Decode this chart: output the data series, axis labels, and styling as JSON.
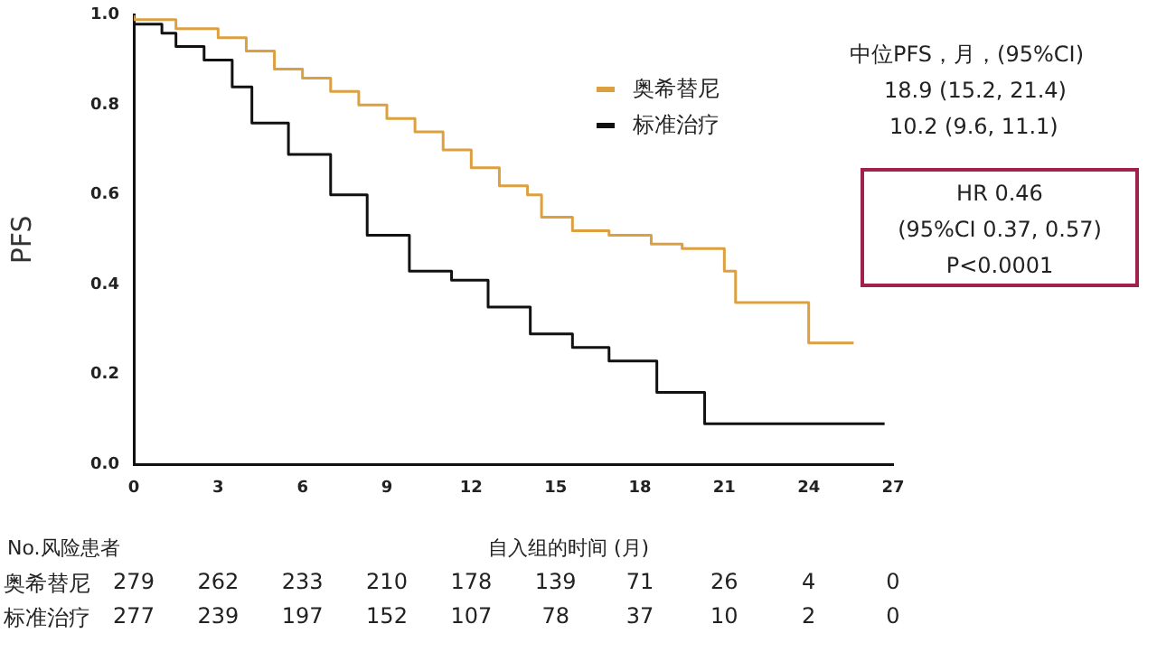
{
  "chart_data": {
    "type": "step",
    "ylabel": "PFS",
    "xlabel": "自入组的时间 (月)",
    "xlim": [
      0,
      27
    ],
    "xticks": [
      0,
      3,
      6,
      9,
      12,
      15,
      18,
      21,
      24,
      27
    ],
    "ylim": [
      0,
      1
    ],
    "yticks": [
      {
        "value": 0,
        "label": "0.0"
      },
      {
        "value": 0.2,
        "label": "0.2"
      },
      {
        "value": 0.4,
        "label": "0.4"
      },
      {
        "value": 0.6,
        "label": "0.6"
      },
      {
        "value": 0.8,
        "label": "0.8"
      },
      {
        "value": 1,
        "label": "1.0"
      }
    ],
    "grid": false,
    "legend": "top right",
    "series": [
      {
        "name": "奥希替尼",
        "color": "#dda040",
        "x": [
          0,
          1.5,
          3,
          4,
          5,
          6,
          7,
          8,
          9,
          10,
          11,
          12,
          13,
          14,
          14.5,
          15.6,
          16.9,
          18.4,
          19.5,
          21,
          21.4,
          24,
          24.9,
          25.6
        ],
        "values": [
          1,
          0.99,
          0.97,
          0.95,
          0.92,
          0.88,
          0.86,
          0.83,
          0.8,
          0.77,
          0.74,
          0.7,
          0.66,
          0.62,
          0.6,
          0.55,
          0.52,
          0.51,
          0.49,
          0.48,
          0.43,
          0.36,
          0.27,
          0.27
        ]
      },
      {
        "name": "标准治疗",
        "color": "#111111",
        "x": [
          0,
          1,
          1.5,
          2.5,
          3.5,
          4.2,
          5.5,
          7,
          8.3,
          9.8,
          11.3,
          12.6,
          14.1,
          15.6,
          16.9,
          18.6,
          20.3,
          24,
          26.7
        ],
        "values": [
          1,
          0.98,
          0.96,
          0.93,
          0.9,
          0.84,
          0.76,
          0.69,
          0.6,
          0.51,
          0.43,
          0.41,
          0.35,
          0.29,
          0.26,
          0.23,
          0.16,
          0.09,
          0.09
        ]
      }
    ],
    "annotations": [
      "中位PFS，月，(95%CI)",
      "18.9 (15.2, 21.4)",
      "10.2 (9.6, 11.1)",
      "HR 0.46\n(95%CI 0.37, 0.57)\nP<0.0001",
      "No.风险患者",
      "奥希替尼 279 262 233 210 178 139 71 26 4 0",
      "标准治疗 277 239 197 152 107 78 37 10 2 0"
    ]
  }
}
